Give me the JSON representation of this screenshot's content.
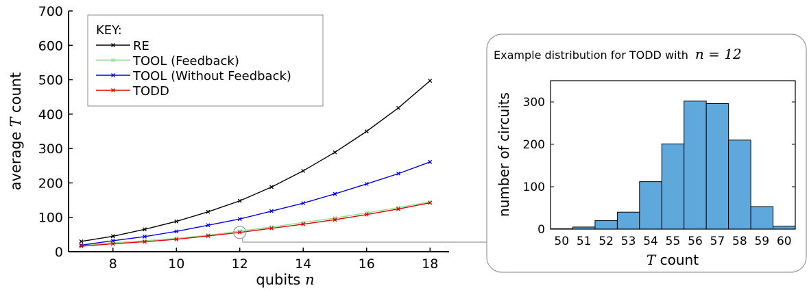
{
  "chart_data": [
    {
      "type": "line",
      "xlabel_text": "qubits",
      "xlabel_var": "n",
      "ylabel_pre": "average",
      "ylabel_var": "T",
      "ylabel_post": "count",
      "xlim": [
        6.6,
        18.6
      ],
      "ylim": [
        0,
        700
      ],
      "xticks": [
        8,
        10,
        12,
        14,
        16,
        18
      ],
      "yticks": [
        0,
        100,
        200,
        300,
        400,
        500,
        600,
        700
      ],
      "legend": {
        "title": "KEY:",
        "placement": "top-left"
      },
      "x": [
        7,
        8,
        9,
        10,
        11,
        12,
        13,
        14,
        15,
        16,
        17,
        18
      ],
      "series": [
        {
          "name": "RE",
          "color": "#000000",
          "values": [
            30,
            45,
            65,
            88,
            116,
            148,
            188,
            235,
            289,
            350,
            418,
            497
          ]
        },
        {
          "name": "TOOL (Feedback)",
          "color": "#90e090",
          "values": [
            19,
            26,
            32,
            39,
            48,
            60,
            72,
            85,
            98,
            113,
            128,
            145
          ]
        },
        {
          "name": "TOOL (Without Feedback)",
          "color": "#0000e6",
          "values": [
            19,
            32,
            44,
            59,
            77,
            95,
            118,
            141,
            168,
            197,
            227,
            261
          ]
        },
        {
          "name": "TODD",
          "color": "#e00000",
          "values": [
            16,
            23,
            29,
            36,
            46,
            56,
            68,
            80,
            93,
            108,
            124,
            142
          ]
        }
      ],
      "highlight_x": 12
    },
    {
      "type": "bar",
      "title_text": "Example distribution for TODD with",
      "title_math": "n = 12",
      "xlabel_var": "T",
      "xlabel_text": "count",
      "ylabel": "number of circuits",
      "categories": [
        "50",
        "51",
        "52",
        "53",
        "54",
        "55",
        "56",
        "57",
        "58",
        "59",
        "60"
      ],
      "values": [
        1,
        5,
        20,
        40,
        112,
        201,
        302,
        296,
        210,
        53,
        7
      ],
      "ylim": [
        0,
        350
      ],
      "yticks": [
        0,
        100,
        200,
        300
      ],
      "bar_color": "#5fa8dc"
    }
  ]
}
